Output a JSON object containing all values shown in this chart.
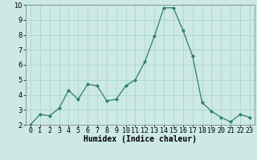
{
  "x": [
    0,
    1,
    2,
    3,
    4,
    5,
    6,
    7,
    8,
    9,
    10,
    11,
    12,
    13,
    14,
    15,
    16,
    17,
    18,
    19,
    20,
    21,
    22,
    23
  ],
  "y": [
    2.0,
    2.7,
    2.6,
    3.1,
    4.3,
    3.7,
    4.7,
    4.6,
    3.6,
    3.7,
    4.6,
    5.0,
    6.2,
    7.9,
    9.8,
    9.8,
    8.3,
    6.6,
    3.5,
    2.9,
    2.5,
    2.2,
    2.7,
    2.5
  ],
  "line_color": "#2e7d6e",
  "marker": "D",
  "marker_size": 2,
  "bg_color": "#cce9e5",
  "grid_color": "#b0d8d4",
  "xlabel": "Humidex (Indice chaleur)",
  "ylim": [
    2,
    10
  ],
  "xlim": [
    -0.5,
    23.5
  ],
  "yticks": [
    2,
    3,
    4,
    5,
    6,
    7,
    8,
    9,
    10
  ],
  "xticks": [
    0,
    1,
    2,
    3,
    4,
    5,
    6,
    7,
    8,
    9,
    10,
    11,
    12,
    13,
    14,
    15,
    16,
    17,
    18,
    19,
    20,
    21,
    22,
    23
  ],
  "xlabel_fontsize": 7,
  "tick_fontsize": 6
}
